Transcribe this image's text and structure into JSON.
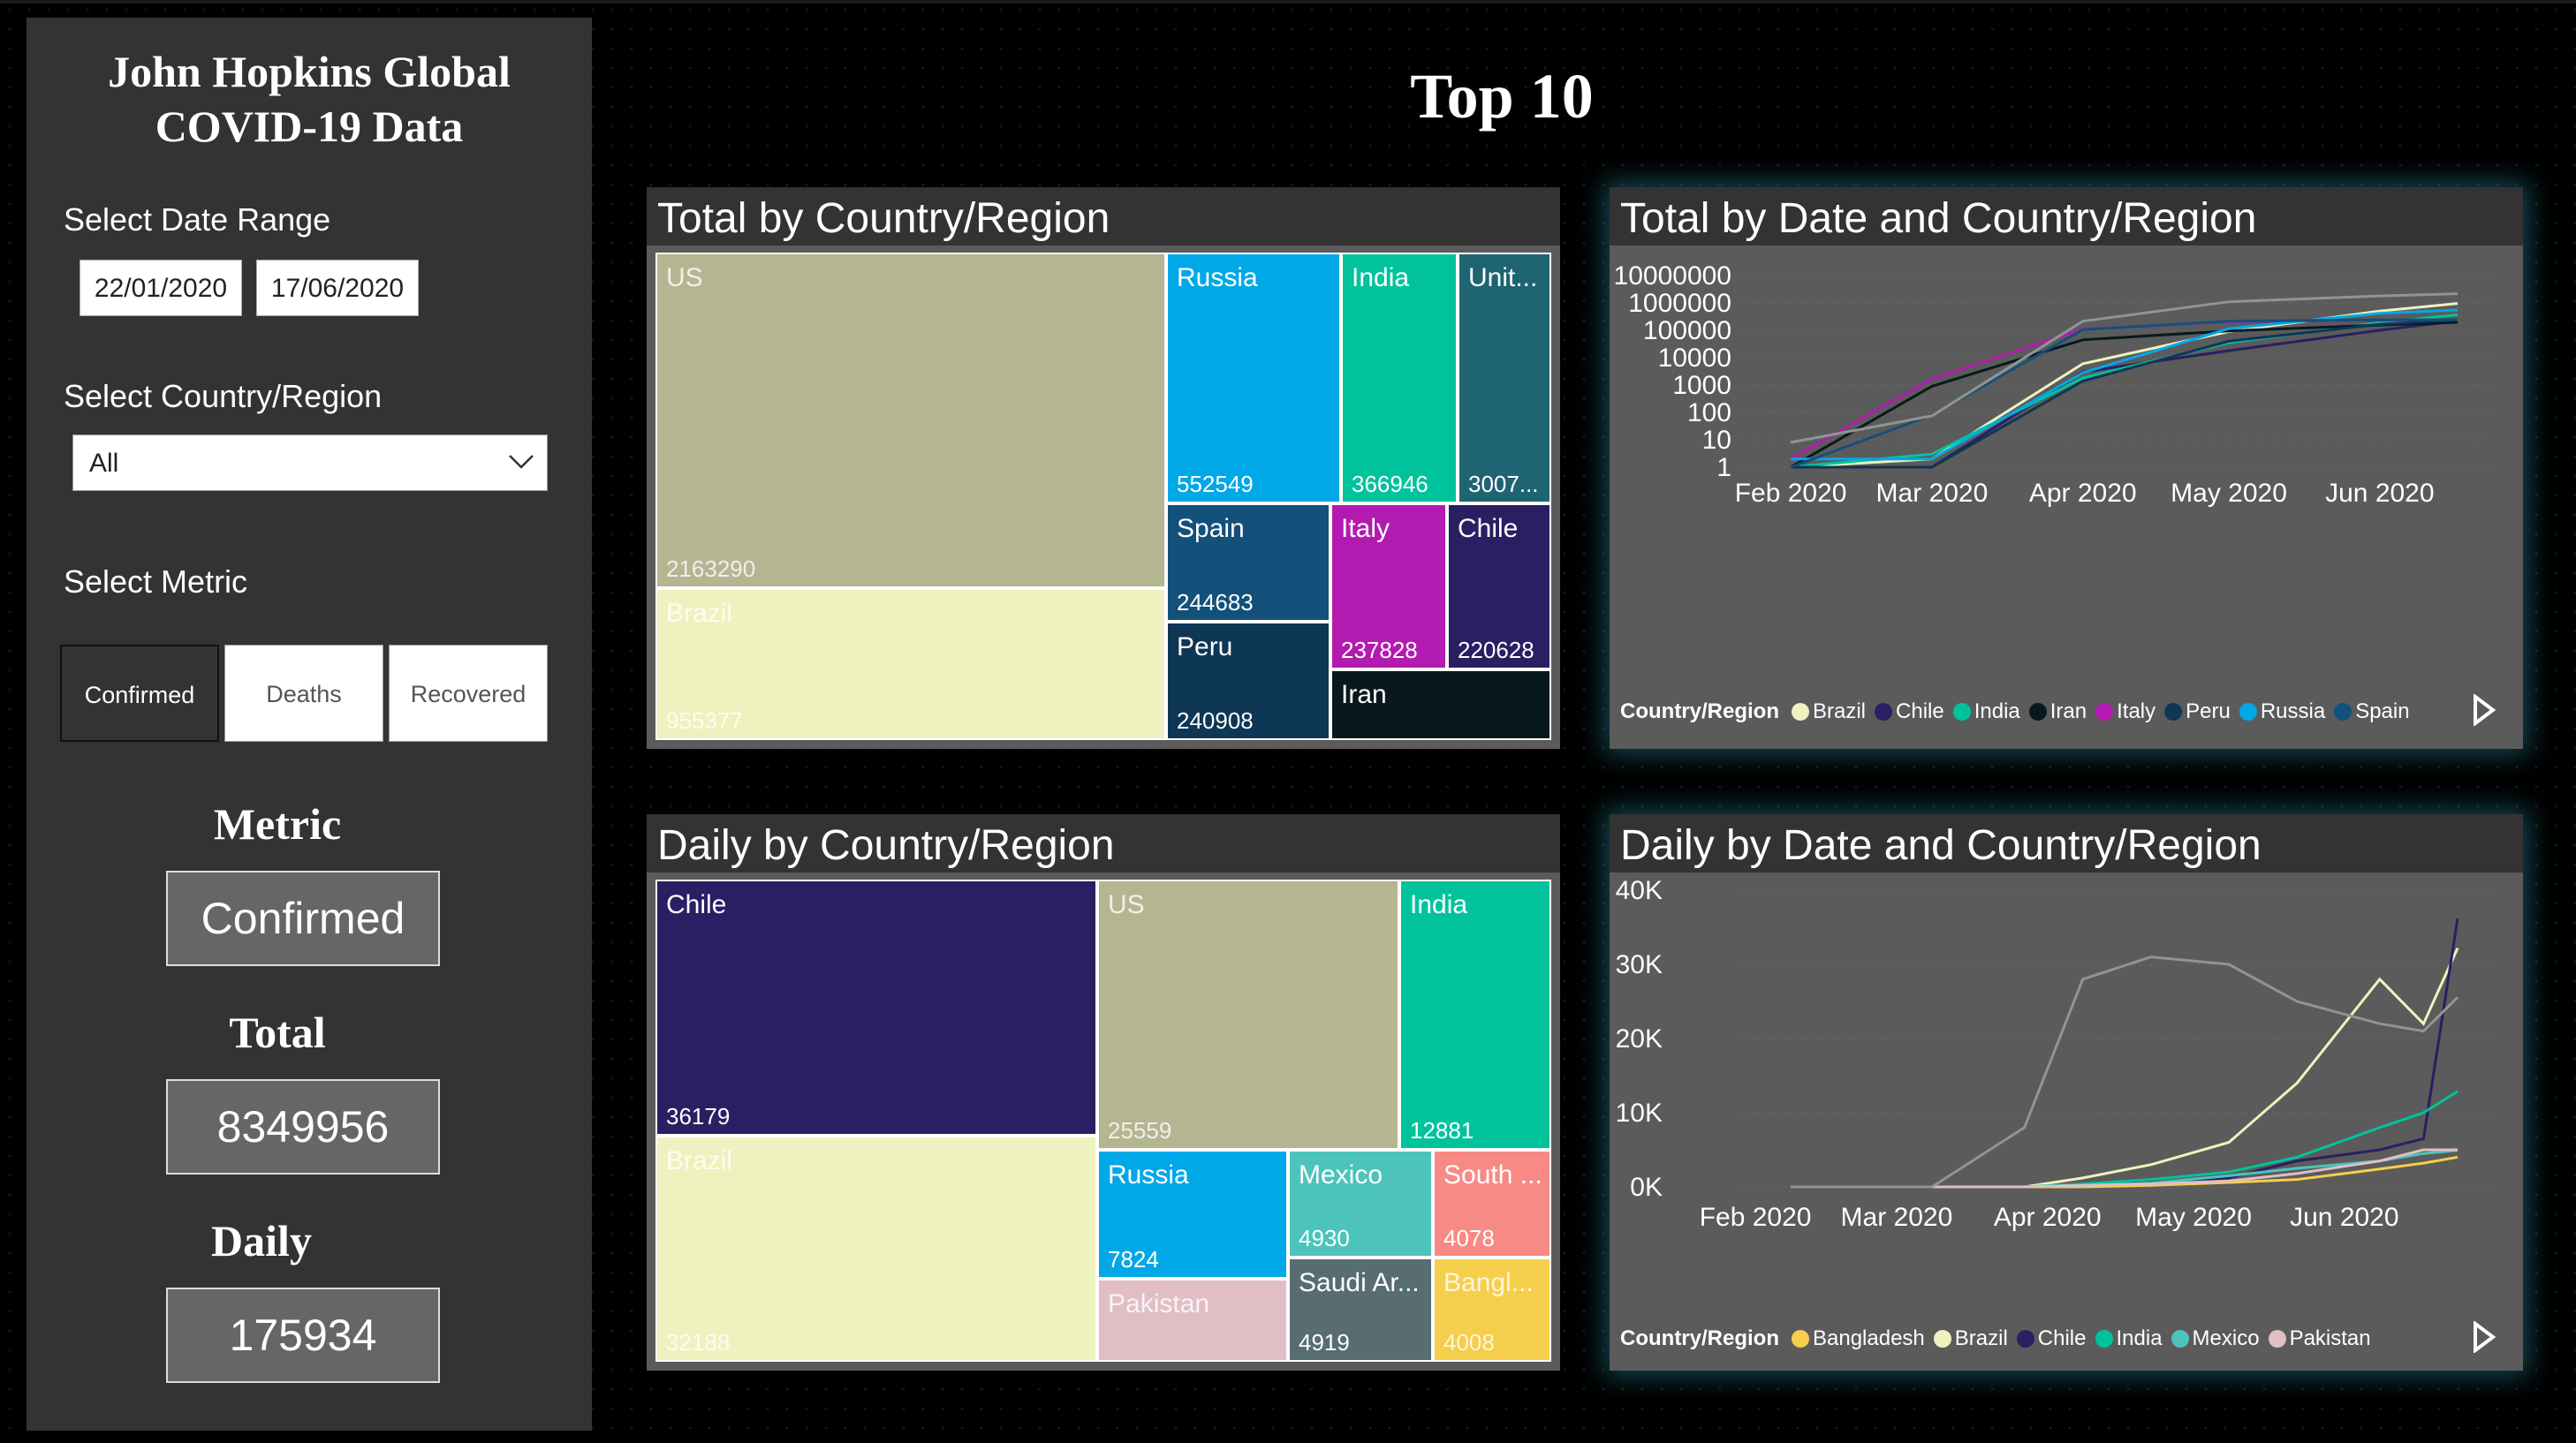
{
  "sidebar": {
    "title_line1": "John Hopkins Global",
    "title_line2": "COVID-19 Data",
    "date_range_label": "Select Date Range",
    "date_start": "22/01/2020",
    "date_end": "17/06/2020",
    "country_label": "Select Country/Region",
    "country_value": "All",
    "metric_label": "Select Metric",
    "metric_buttons": [
      "Confirmed",
      "Deaths",
      "Recovered"
    ],
    "selected_metric": "Confirmed",
    "metric_heading": "Metric",
    "metric_value": "Confirmed",
    "total_heading": "Total",
    "total_value": "8349956",
    "daily_heading": "Daily",
    "daily_value": "175934"
  },
  "main_title": "Top 10",
  "total_treemap": {
    "title": "Total by Country/Region",
    "tiles": [
      {
        "name": "US",
        "value": "2163290",
        "color": "#b3b691"
      },
      {
        "name": "Brazil",
        "value": "955377",
        "color": "#eef2be"
      },
      {
        "name": "Russia",
        "value": "552549",
        "color": "#00a8e8"
      },
      {
        "name": "India",
        "value": "366946",
        "color": "#00c39c"
      },
      {
        "name": "Unit...",
        "value": "3007...",
        "color": "#1e6473"
      },
      {
        "name": "Spain",
        "value": "244683",
        "color": "#13507a"
      },
      {
        "name": "Italy",
        "value": "237828",
        "color": "#b31bb0"
      },
      {
        "name": "Chile",
        "value": "220628",
        "color": "#2a1f63"
      },
      {
        "name": "Peru",
        "value": "240908",
        "color": "#0e3655"
      },
      {
        "name": "Iran",
        "value": "",
        "color": "#08181e"
      }
    ]
  },
  "daily_treemap": {
    "title": "Daily by Country/Region",
    "tiles": [
      {
        "name": "Chile",
        "value": "36179",
        "color": "#2a1f63"
      },
      {
        "name": "Brazil",
        "value": "32188",
        "color": "#eef2be"
      },
      {
        "name": "US",
        "value": "25559",
        "color": "#b3b691"
      },
      {
        "name": "India",
        "value": "12881",
        "color": "#00c39c"
      },
      {
        "name": "Russia",
        "value": "7824",
        "color": "#00a8e8"
      },
      {
        "name": "Mexico",
        "value": "4930",
        "color": "#4cc4bc"
      },
      {
        "name": "South ...",
        "value": "4078",
        "color": "#f78a85"
      },
      {
        "name": "Pakistan",
        "value": "",
        "color": "#e1bec6"
      },
      {
        "name": "Saudi Ar...",
        "value": "4919",
        "color": "#586d72"
      },
      {
        "name": "Bangl...",
        "value": "4008",
        "color": "#f5ce4c"
      }
    ]
  },
  "total_line": {
    "title": "Total by Date and Country/Region",
    "y_ticks": [
      "10000000",
      "1000000",
      "100000",
      "10000",
      "1000",
      "100",
      "10",
      "1"
    ],
    "x_ticks": [
      "Feb 2020",
      "Mar 2020",
      "Apr 2020",
      "May 2020",
      "Jun 2020"
    ],
    "legend_title": "Country/Region",
    "legend": [
      {
        "name": "Brazil",
        "color": "#eef2be"
      },
      {
        "name": "Chile",
        "color": "#2a1f63"
      },
      {
        "name": "India",
        "color": "#00c39c"
      },
      {
        "name": "Iran",
        "color": "#08181e"
      },
      {
        "name": "Italy",
        "color": "#b31bb0"
      },
      {
        "name": "Peru",
        "color": "#0e3655"
      },
      {
        "name": "Russia",
        "color": "#00a8e8"
      },
      {
        "name": "Spain",
        "color": "#13507a"
      }
    ]
  },
  "daily_line": {
    "title": "Daily by Date and Country/Region",
    "y_ticks": [
      "40K",
      "30K",
      "20K",
      "10K",
      "0K"
    ],
    "x_ticks": [
      "Feb 2020",
      "Mar 2020",
      "Apr 2020",
      "May 2020",
      "Jun 2020"
    ],
    "legend_title": "Country/Region",
    "legend": [
      {
        "name": "Bangladesh",
        "color": "#f5ce4c"
      },
      {
        "name": "Brazil",
        "color": "#eef2be"
      },
      {
        "name": "Chile",
        "color": "#2a1f63"
      },
      {
        "name": "India",
        "color": "#00c39c"
      },
      {
        "name": "Mexico",
        "color": "#4cc4bc"
      },
      {
        "name": "Pakistan",
        "color": "#e1bec6"
      }
    ]
  },
  "chart_data": [
    {
      "type": "treemap",
      "title": "Total by Country/Region",
      "categories": [
        "US",
        "Brazil",
        "Russia",
        "India",
        "Unit...",
        "Spain",
        "Italy",
        "Chile",
        "Peru",
        "Iran"
      ],
      "values": [
        2163290,
        955377,
        552549,
        366946,
        300700,
        244683,
        237828,
        220628,
        240908,
        195000
      ]
    },
    {
      "type": "treemap",
      "title": "Daily by Country/Region",
      "categories": [
        "Chile",
        "Brazil",
        "US",
        "India",
        "Russia",
        "Mexico",
        "South ...",
        "Pakistan",
        "Saudi Ar...",
        "Bangl..."
      ],
      "values": [
        36179,
        32188,
        25559,
        12881,
        7824,
        4930,
        4078,
        5000,
        4919,
        4008
      ]
    },
    {
      "type": "line",
      "title": "Total by Date and Country/Region",
      "y_scale": "log",
      "ylim": [
        1,
        10000000
      ],
      "x": [
        "2020-02-01",
        "2020-03-01",
        "2020-04-01",
        "2020-05-01",
        "2020-06-01",
        "2020-06-17"
      ],
      "series": [
        {
          "name": "Brazil",
          "values": [
            0,
            2,
            6000,
            90000,
            500000,
            955377
          ]
        },
        {
          "name": "Chile",
          "values": [
            0,
            0,
            3000,
            18000,
            100000,
            220628
          ]
        },
        {
          "name": "India",
          "values": [
            1,
            3,
            1800,
            35000,
            190000,
            366946
          ]
        },
        {
          "name": "Iran",
          "values": [
            0,
            900,
            45000,
            95000,
            155000,
            195000
          ]
        },
        {
          "name": "Italy",
          "values": [
            2,
            1700,
            110000,
            205000,
            233000,
            237828
          ]
        },
        {
          "name": "Peru",
          "values": [
            0,
            0,
            1400,
            40000,
            165000,
            240908
          ]
        },
        {
          "name": "Russia",
          "values": [
            2,
            2,
            2800,
            115000,
            415000,
            552549
          ]
        },
        {
          "name": "Spain",
          "values": [
            1,
            80,
            105000,
            215000,
            240000,
            244683
          ]
        },
        {
          "name": "US",
          "values": [
            8,
            75,
            215000,
            1100000,
            1800000,
            2163290
          ]
        }
      ]
    },
    {
      "type": "line",
      "title": "Daily by Date and Country/Region",
      "ylim": [
        0,
        40000
      ],
      "x": [
        "2020-02-01",
        "2020-03-01",
        "2020-03-20",
        "2020-04-01",
        "2020-04-15",
        "2020-05-01",
        "2020-05-15",
        "2020-06-01",
        "2020-06-10",
        "2020-06-17"
      ],
      "series": [
        {
          "name": "Bangladesh",
          "values": [
            0,
            0,
            0,
            0,
            200,
            600,
            1000,
            2400,
            3200,
            4008
          ]
        },
        {
          "name": "Brazil",
          "values": [
            0,
            0,
            0,
            1200,
            3000,
            6000,
            14000,
            28000,
            22000,
            32188
          ]
        },
        {
          "name": "Chile",
          "values": [
            0,
            0,
            0,
            300,
            500,
            1200,
            3500,
            5000,
            6500,
            36179
          ]
        },
        {
          "name": "India",
          "values": [
            0,
            0,
            0,
            400,
            1000,
            2000,
            4000,
            8000,
            10000,
            12881
          ]
        },
        {
          "name": "Mexico",
          "values": [
            0,
            0,
            0,
            200,
            500,
            1500,
            2500,
            3500,
            4500,
            4930
          ]
        },
        {
          "name": "Pakistan",
          "values": [
            0,
            0,
            0,
            200,
            400,
            800,
            1800,
            3500,
            5000,
            5000
          ]
        },
        {
          "name": "US",
          "values": [
            0,
            0,
            8000,
            28000,
            31000,
            30000,
            25000,
            22000,
            21000,
            25559
          ]
        }
      ]
    }
  ]
}
